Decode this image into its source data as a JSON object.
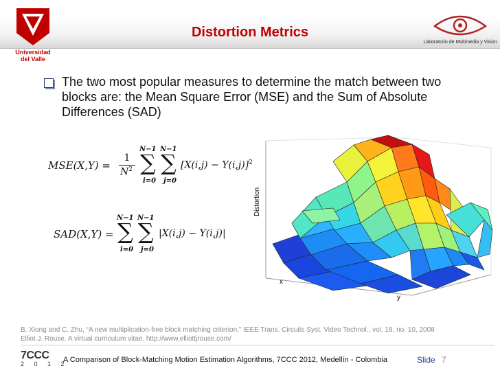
{
  "header": {
    "title": "Distortion Metrics",
    "university_logo_text": [
      "Universidad",
      "del Valle"
    ],
    "lab_logo_text": "Laboratorio de Multimedia y Vision"
  },
  "body": {
    "bullet": "The two most popular measures to determine the match between two blocks are: the Mean Square Error (MSE) and the Sum of Absolute Differences (SAD)"
  },
  "formulas": {
    "mse": {
      "lhs": "MSE(X,Y) =",
      "frac_num": "1",
      "frac_den": "N",
      "frac_den_exp": "2",
      "sum_upper": "N−1",
      "sum_lower_i": "i=0",
      "sum_lower_j": "j=0",
      "term": "[X(i,j) − Y(i,j)]",
      "term_exp": "2"
    },
    "sad": {
      "lhs": "SAD(X,Y) =",
      "sum_upper": "N−1",
      "sum_lower_i": "i=0",
      "sum_lower_j": "j=0",
      "term": "|X(i,j) − Y(i,j)|"
    }
  },
  "surface_plot": {
    "z_axis_label": "Distortion",
    "x_axis_label": "x",
    "y_axis_label": "y"
  },
  "citation": {
    "line1": "B. Xiong and C. Zhu, “A new multiplication-free block matching criterion,” IEEE Trans. Circuits Syst. Video Technol., vol. 18, no. 10, 2008",
    "line2": "Elliot J. Rouse. A virtual curriculum vitae. http://www.elliottjrouse.com/"
  },
  "footer": {
    "conference_logo": "7CCC",
    "conference_year": "2 0 1 2",
    "text": "A Comparison of Block-Matching Motion Estimation Algorithms, 7CCC 2012, Medellín - Colombia",
    "slide_label": "Slide",
    "slide_number": "7"
  },
  "colors": {
    "title": "#c00000",
    "slide_label": "#1f3f8f",
    "citation": "#8a8a8a"
  }
}
